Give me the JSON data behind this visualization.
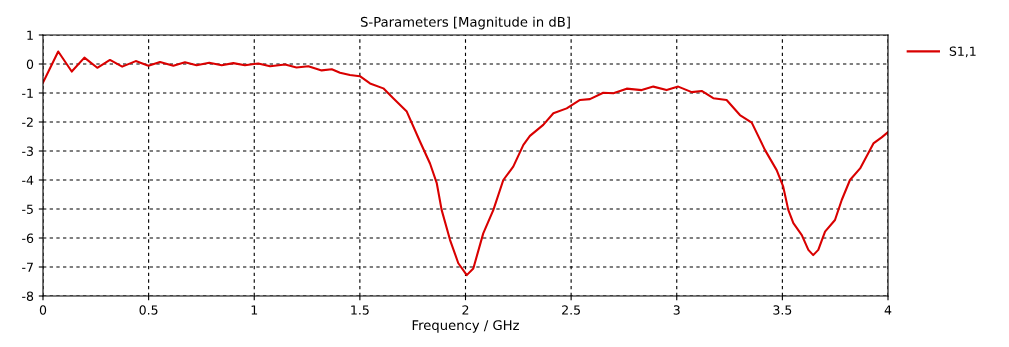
{
  "chart_data": {
    "type": "line",
    "title": "S-Parameters [Magnitude in dB]",
    "xlabel": "Frequency / GHz",
    "xlim": [
      0,
      4
    ],
    "xticks": [
      0,
      0.5,
      1,
      1.5,
      2,
      2.5,
      3,
      3.5,
      4
    ],
    "ylim": [
      -8,
      1
    ],
    "yticks": [
      -8,
      -7,
      -6,
      -5,
      -4,
      -3,
      -2,
      -1,
      0,
      1
    ],
    "grid": true,
    "legend": "top right",
    "line_style": "solid",
    "series": [
      {
        "name": "S1,1",
        "color": "#d90000",
        "x": [
          0,
          0.072,
          0.136,
          0.196,
          0.257,
          0.317,
          0.375,
          0.439,
          0.499,
          0.554,
          0.617,
          0.672,
          0.727,
          0.787,
          0.846,
          0.901,
          0.956,
          1.019,
          1.075,
          1.146,
          1.2,
          1.256,
          1.319,
          1.367,
          1.406,
          1.453,
          1.5,
          1.548,
          1.611,
          1.658,
          1.722,
          1.785,
          1.832,
          1.864,
          1.887,
          1.927,
          1.966,
          2.006,
          2.037,
          2.084,
          2.132,
          2.179,
          2.226,
          2.274,
          2.305,
          2.368,
          2.416,
          2.479,
          2.542,
          2.589,
          2.652,
          2.7,
          2.763,
          2.834,
          2.889,
          2.952,
          3.007,
          3.071,
          3.118,
          3.173,
          3.236,
          3.299,
          3.355,
          3.418,
          3.473,
          3.504,
          3.528,
          3.552,
          3.592,
          3.623,
          3.646,
          3.67,
          3.702,
          3.749,
          3.781,
          3.82,
          3.868,
          3.931,
          3.97,
          4.0
        ],
        "values": [
          -0.64,
          0.43,
          -0.26,
          0.22,
          -0.13,
          0.14,
          -0.09,
          0.1,
          -0.06,
          0.07,
          -0.06,
          0.06,
          -0.04,
          0.04,
          -0.04,
          0.03,
          -0.04,
          0.02,
          -0.08,
          -0.02,
          -0.12,
          -0.08,
          -0.22,
          -0.18,
          -0.3,
          -0.38,
          -0.42,
          -0.67,
          -0.84,
          -1.18,
          -1.64,
          -2.68,
          -3.43,
          -4.11,
          -5.03,
          -6.07,
          -6.87,
          -7.28,
          -7.05,
          -5.84,
          -5.03,
          -4.0,
          -3.54,
          -2.79,
          -2.48,
          -2.1,
          -1.7,
          -1.53,
          -1.24,
          -1.21,
          -0.99,
          -1.01,
          -0.85,
          -0.9,
          -0.78,
          -0.9,
          -0.78,
          -0.97,
          -0.93,
          -1.18,
          -1.24,
          -1.76,
          -2.02,
          -2.97,
          -3.66,
          -4.23,
          -5.03,
          -5.49,
          -5.9,
          -6.41,
          -6.59,
          -6.41,
          -5.78,
          -5.38,
          -4.69,
          -4.0,
          -3.6,
          -2.74,
          -2.53,
          -2.35
        ]
      }
    ]
  }
}
